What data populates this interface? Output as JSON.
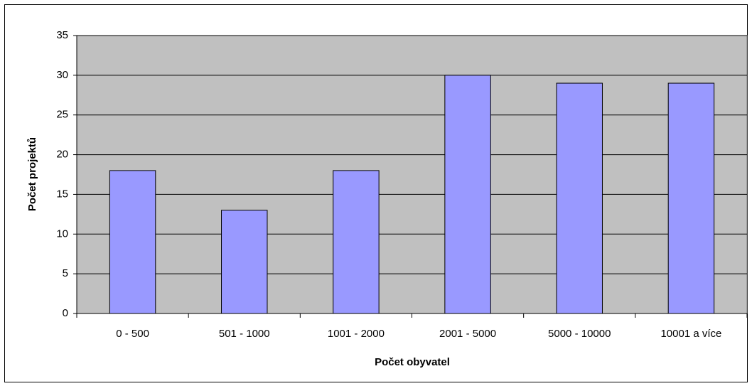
{
  "chart_data": {
    "type": "bar",
    "categories": [
      "0 - 500",
      "501 - 1000",
      "1001 - 2000",
      "2001 - 5000",
      "5000 - 10000",
      "10001 a více"
    ],
    "values": [
      18,
      13,
      18,
      30,
      29,
      29
    ],
    "color": "#9999ff",
    "plot_background": "#c0c0c0",
    "xlabel": "Počet obyvatel",
    "ylabel": "Počet projektů",
    "ylim": [
      0,
      35
    ],
    "yticks": [
      0,
      5,
      10,
      15,
      20,
      25,
      30,
      35
    ],
    "grid": true
  }
}
